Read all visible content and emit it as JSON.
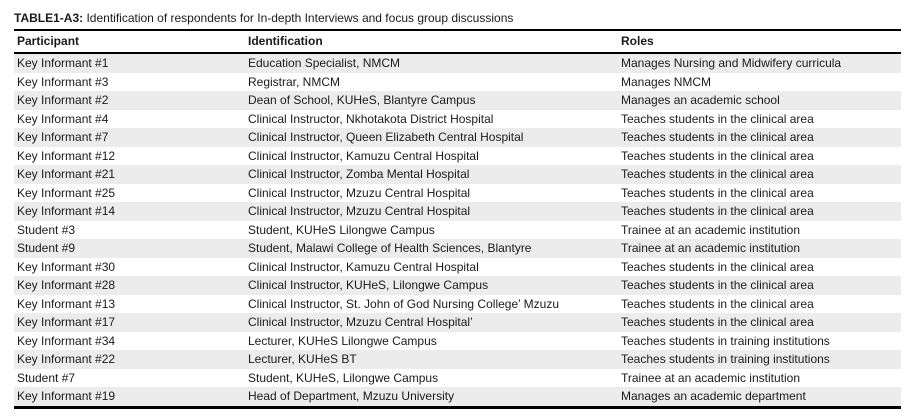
{
  "table": {
    "title": {
      "prefix": "TABLE1-A3:",
      "text": " Identification of respondents for In-depth Interviews and focus group discussions"
    },
    "columns": [
      "Participant",
      "Identification",
      "Roles"
    ],
    "rows": [
      [
        "Key Informant #1",
        "Education Specialist, NMCM",
        "Manages Nursing and Midwifery curricula"
      ],
      [
        "Key Informant #3",
        "Registrar, NMCM",
        "Manages NMCM"
      ],
      [
        "Key Informant #2",
        "Dean of School, KUHeS, Blantyre Campus",
        "Manages an academic school"
      ],
      [
        "Key Informant #4",
        "Clinical Instructor, Nkhotakota District Hospital",
        "Teaches students in the clinical area"
      ],
      [
        "Key Informant #7",
        "Clinical Instructor, Queen Elizabeth Central Hospital",
        "Teaches students in the clinical area"
      ],
      [
        "Key Informant #12",
        "Clinical Instructor, Kamuzu Central Hospital",
        "Teaches students in the clinical area"
      ],
      [
        "Key Informant #21",
        "Clinical Instructor, Zomba Mental Hospital",
        "Teaches students in the clinical area"
      ],
      [
        "Key Informant #25",
        "Clinical Instructor, Mzuzu Central Hospital",
        "Teaches students in the clinical area"
      ],
      [
        "Key Informant #14",
        "Clinical Instructor, Mzuzu Central Hospital",
        "Teaches students in the clinical area"
      ],
      [
        "Student #3",
        "Student, KUHeS Lilongwe Campus",
        "Trainee at an academic institution"
      ],
      [
        "Student #9",
        "Student, Malawi College of Health Sciences, Blantyre",
        "Trainee at an academic institution"
      ],
      [
        "Key Informant #30",
        "Clinical Instructor, Kamuzu Central Hospital",
        "Teaches students in the clinical area"
      ],
      [
        "Key Informant #28",
        "Clinical Instructor, KUHeS, Lilongwe Campus",
        "Teaches students in the clinical area"
      ],
      [
        "Key Informant #13",
        "Clinical Instructor, St. John of God Nursing College’ Mzuzu",
        "Teaches students in the clinical area"
      ],
      [
        "Key Informant #17",
        "Clinical Instructor, Mzuzu Central Hospital’",
        "Teaches students in the clinical area"
      ],
      [
        "Key Informant #34",
        "Lecturer, KUHeS Lilongwe Campus",
        "Teaches students in training institutions"
      ],
      [
        "Key Informant #22",
        "Lecturer, KUHeS BT",
        "Teaches students in training institutions"
      ],
      [
        "Student #7",
        "Student, KUHeS, Lilongwe Campus",
        "Trainee at an academic institution"
      ],
      [
        "Key Informant #19",
        "Head of Department, Mzuzu University",
        "Manages an academic department"
      ]
    ],
    "colors": {
      "stripe": "#ececec",
      "border": "#000000",
      "text": "#1a1a1a"
    }
  }
}
